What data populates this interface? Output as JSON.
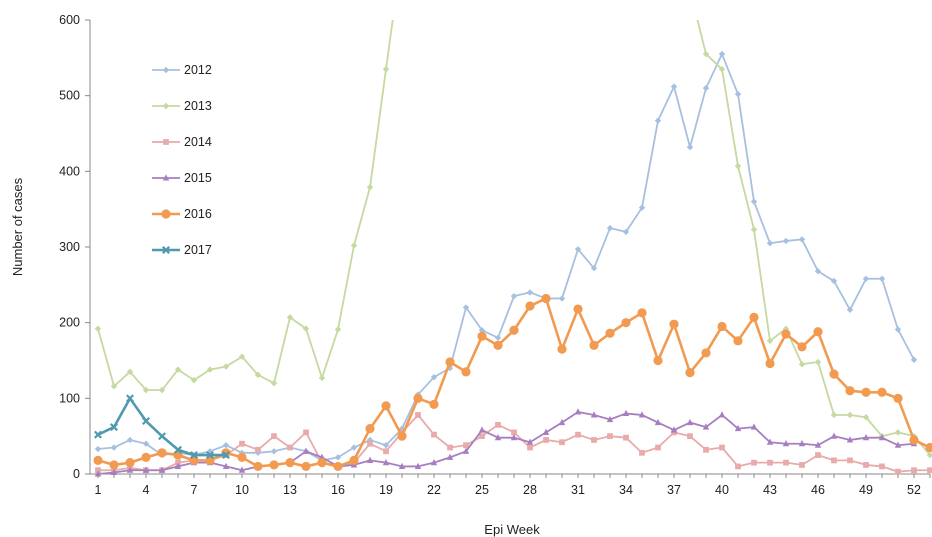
{
  "chart_data": {
    "type": "line",
    "xlabel": "Epi Week",
    "ylabel": "Number of cases",
    "ylim": [
      0,
      600
    ],
    "xlim": [
      1,
      53
    ],
    "y_ticks": [
      "0",
      "100",
      "200",
      "300",
      "400",
      "500",
      "600"
    ],
    "x_ticks": [
      "1",
      "4",
      "7",
      "10",
      "13",
      "16",
      "19",
      "22",
      "25",
      "28",
      "31",
      "34",
      "37",
      "40",
      "43",
      "46",
      "49",
      "52"
    ],
    "grid": false,
    "legend_position": "top-left",
    "series": [
      {
        "name": "2012",
        "color": "#a8c0e0",
        "marker": "diamond",
        "values": [
          33,
          35,
          45,
          40,
          25,
          28,
          25,
          30,
          38,
          28,
          28,
          30,
          35,
          30,
          18,
          22,
          35,
          45,
          38,
          60,
          105,
          128,
          140,
          220,
          190,
          180,
          235,
          240,
          232,
          232,
          297,
          272,
          325,
          320,
          352,
          467,
          512,
          432,
          510,
          555,
          502,
          360,
          305,
          308,
          310,
          268,
          255,
          217,
          258,
          258,
          191,
          151
        ]
      },
      {
        "name": "2013",
        "color": "#c5d9a0",
        "marker": "diamond",
        "values": [
          192,
          116,
          135,
          111,
          111,
          138,
          124,
          138,
          142,
          155,
          131,
          120,
          207,
          192,
          127,
          191,
          302,
          379,
          535,
          690,
          null,
          null,
          null,
          null,
          null,
          null,
          null,
          null,
          null,
          null,
          null,
          null,
          null,
          null,
          null,
          null,
          null,
          640,
          555,
          535,
          407,
          323,
          176,
          192,
          145,
          148,
          78,
          78,
          75,
          50,
          55,
          50,
          25
        ]
      },
      {
        "name": "2014",
        "color": "#e8aaaa",
        "marker": "square",
        "values": [
          5,
          5,
          8,
          5,
          5,
          15,
          18,
          18,
          25,
          40,
          32,
          50,
          35,
          55,
          15,
          10,
          15,
          40,
          30,
          55,
          78,
          52,
          35,
          38,
          50,
          65,
          55,
          35,
          45,
          42,
          52,
          45,
          50,
          48,
          28,
          35,
          55,
          50,
          32,
          35,
          10,
          15,
          15,
          15,
          12,
          25,
          18,
          18,
          12,
          10,
          3,
          5,
          5
        ]
      },
      {
        "name": "2015",
        "color": "#a77ec0",
        "marker": "triangle",
        "values": [
          0,
          2,
          5,
          5,
          5,
          10,
          15,
          15,
          10,
          5,
          10,
          12,
          15,
          30,
          22,
          10,
          12,
          18,
          15,
          10,
          10,
          15,
          22,
          30,
          58,
          48,
          48,
          42,
          55,
          68,
          82,
          78,
          72,
          80,
          78,
          68,
          58,
          68,
          62,
          78,
          60,
          62,
          42,
          40,
          40,
          38,
          50,
          45,
          48,
          48,
          38,
          40
        ]
      },
      {
        "name": "2016",
        "color": "#f29a50",
        "marker": "circle",
        "values": [
          18,
          12,
          15,
          22,
          28,
          25,
          18,
          18,
          28,
          22,
          10,
          12,
          15,
          10,
          15,
          10,
          18,
          60,
          90,
          50,
          100,
          92,
          148,
          135,
          182,
          170,
          190,
          222,
          232,
          165,
          218,
          170,
          186,
          200,
          213,
          150,
          198,
          134,
          160,
          195,
          176,
          207,
          146,
          185,
          168,
          188,
          132,
          110,
          108,
          108,
          100,
          45,
          35
        ]
      },
      {
        "name": "2017",
        "color": "#4f9aae",
        "marker": "x",
        "values": [
          52,
          62,
          100,
          70,
          50,
          32,
          25,
          25,
          25
        ]
      }
    ]
  }
}
